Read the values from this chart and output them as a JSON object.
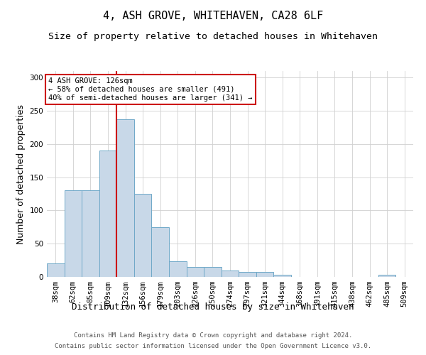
{
  "title": "4, ASH GROVE, WHITEHAVEN, CA28 6LF",
  "subtitle": "Size of property relative to detached houses in Whitehaven",
  "xlabel": "Distribution of detached houses by size in Whitehaven",
  "ylabel": "Number of detached properties",
  "footnote1": "Contains HM Land Registry data © Crown copyright and database right 2024.",
  "footnote2": "Contains public sector information licensed under the Open Government Licence v3.0.",
  "categories": [
    "38sqm",
    "62sqm",
    "85sqm",
    "109sqm",
    "132sqm",
    "156sqm",
    "179sqm",
    "203sqm",
    "226sqm",
    "250sqm",
    "274sqm",
    "297sqm",
    "321sqm",
    "344sqm",
    "368sqm",
    "391sqm",
    "415sqm",
    "438sqm",
    "462sqm",
    "485sqm",
    "509sqm"
  ],
  "values": [
    20,
    130,
    130,
    190,
    237,
    125,
    75,
    24,
    15,
    15,
    10,
    7,
    7,
    3,
    0,
    0,
    0,
    0,
    0,
    3,
    0
  ],
  "bar_color": "#c8d8e8",
  "bar_edge_color": "#6fa8c8",
  "marker_index": 4,
  "marker_label": "4 ASH GROVE: 126sqm",
  "annotation_line1": "← 58% of detached houses are smaller (491)",
  "annotation_line2": "40% of semi-detached houses are larger (341) →",
  "marker_color": "#cc0000",
  "annotation_box_edge": "#cc0000",
  "ylim": [
    0,
    310
  ],
  "yticks": [
    0,
    50,
    100,
    150,
    200,
    250,
    300
  ],
  "title_fontsize": 11,
  "subtitle_fontsize": 9.5,
  "axis_label_fontsize": 9,
  "tick_fontsize": 7.5,
  "footnote_fontsize": 6.5,
  "annotation_fontsize": 7.5
}
